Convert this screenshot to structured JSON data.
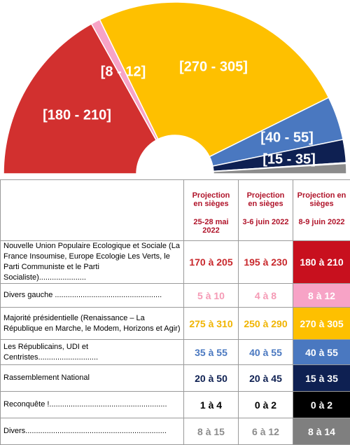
{
  "chart_data": {
    "type": "hemicycle",
    "segments": [
      {
        "label": "[180 - 210]",
        "low": 180,
        "high": 210,
        "color": "#d2302f"
      },
      {
        "label": "[8 - 12]",
        "low": 8,
        "high": 12,
        "color": "#f7a3c6"
      },
      {
        "label": "[270 - 305]",
        "low": 270,
        "high": 305,
        "color": "#fec000"
      },
      {
        "label": "[40 - 55]",
        "low": 40,
        "high": 55,
        "color": "#4a78c0"
      },
      {
        "label": "[15 - 35]",
        "low": 15,
        "high": 35,
        "color": "#0e2052"
      },
      {
        "low": 0,
        "high": 2,
        "color": "#000000"
      },
      {
        "low": 8,
        "high": 14,
        "color": "#8c8c8c"
      }
    ]
  },
  "table": {
    "headers": [
      {
        "title": "Projection en sièges",
        "date": "25-28 mai 2022"
      },
      {
        "title": "Projection en sièges",
        "date": "3-6 juin 2022"
      },
      {
        "title": "Projection en sièges",
        "date": "8-9 juin 2022"
      }
    ],
    "rows": [
      {
        "label": "Nouvelle Union Populaire Ecologique et Sociale (La France Insoumise, Europe Ecologie Les Verts, le Parti Communiste et le Parti Socialiste)......................",
        "cells": [
          "170 à 205",
          "195 à 230",
          "180 à 210"
        ],
        "color": "#c8282c",
        "bg": "#c8101e"
      },
      {
        "label": "Divers gauche ..................................................",
        "cells": [
          "5 à 10",
          "4 à 8",
          "8 à 12"
        ],
        "color": "#f59ab5",
        "bg": "#f7a3c6"
      },
      {
        "label": "Majorité présidentielle (Renaissance – La République en Marche, le Modem, Horizons et Agir)",
        "cells": [
          "275 à 310",
          "250 à 290",
          "270 à 305"
        ],
        "color": "#f0b400",
        "bg": "#fec000"
      },
      {
        "label": "Les Républicains, UDI et Centristes............................",
        "cells": [
          "35 à 55",
          "40 à 55",
          "40 à 55"
        ],
        "color": "#4a78c0",
        "bg": "#4a78c0"
      },
      {
        "label": "Rassemblement National",
        "cells": [
          "20 à 50",
          "20 à 45",
          "15 à 35"
        ],
        "color": "#0e2052",
        "bg": "#0e2052"
      },
      {
        "label": "Reconquête !.......................................................",
        "cells": [
          "1 à 4",
          "0 à 2",
          "0 à 2"
        ],
        "color": "#000000",
        "bg": "#000000"
      },
      {
        "label": "Divers..................................................................",
        "cells": [
          "8 à 15",
          "6 à 12",
          "8 à 14"
        ],
        "color": "#8c8c8c",
        "bg": "#7f7f7f"
      }
    ]
  }
}
